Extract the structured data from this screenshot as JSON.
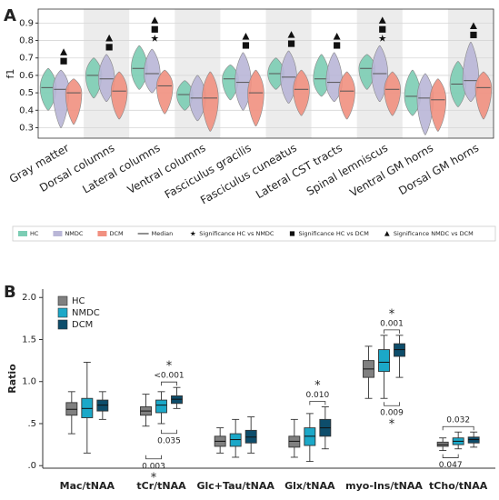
{
  "chart_data": [
    {
      "type": "violin",
      "panel_label": "A",
      "ylabel": "f1",
      "categories": [
        "Gray matter",
        "Dorsal columns",
        "Lateral columns",
        "Ventral columns",
        "Fasciculus gracilis",
        "Fasciculus cuneatus",
        "Lateral CST tracts",
        "Spinal lemniscus",
        "Ventral GM horns",
        "Dorsal GM horns"
      ],
      "series": [
        {
          "name": "HC",
          "color": "#7ccdb4",
          "median": [
            0.53,
            0.6,
            0.64,
            0.49,
            0.58,
            0.61,
            0.58,
            0.64,
            0.48,
            0.55
          ],
          "min": [
            0.4,
            0.47,
            0.52,
            0.4,
            0.46,
            0.52,
            0.48,
            0.52,
            0.37,
            0.42
          ],
          "max": [
            0.64,
            0.7,
            0.77,
            0.57,
            0.66,
            0.7,
            0.72,
            0.72,
            0.63,
            0.68
          ]
        },
        {
          "name": "NMDC",
          "color": "#b9b6d7",
          "median": [
            0.52,
            0.58,
            0.61,
            0.47,
            0.56,
            0.59,
            0.56,
            0.61,
            0.47,
            0.57
          ],
          "min": [
            0.3,
            0.45,
            0.5,
            0.34,
            0.4,
            0.44,
            0.45,
            0.45,
            0.26,
            0.45
          ],
          "max": [
            0.63,
            0.72,
            0.75,
            0.6,
            0.73,
            0.74,
            0.73,
            0.77,
            0.61,
            0.79
          ]
        },
        {
          "name": "DCM",
          "color": "#f19080",
          "median": [
            0.5,
            0.51,
            0.54,
            0.47,
            0.5,
            0.52,
            0.51,
            0.52,
            0.46,
            0.53
          ],
          "min": [
            0.32,
            0.35,
            0.38,
            0.28,
            0.31,
            0.37,
            0.35,
            0.37,
            0.28,
            0.35
          ],
          "max": [
            0.58,
            0.62,
            0.63,
            0.62,
            0.63,
            0.63,
            0.62,
            0.62,
            0.58,
            0.62
          ]
        }
      ],
      "median_label": "Median",
      "significance": {
        "names": [
          "Significance HC vs NMDC",
          "Significance HC vs DCM",
          "Significance NMDC vs DCM"
        ],
        "symbols": [
          "star",
          "square",
          "triangle"
        ],
        "per_category": [
          [
            1,
            2
          ],
          [
            1,
            2
          ],
          [
            0,
            1,
            2
          ],
          [],
          [
            1,
            2
          ],
          [
            1,
            2
          ],
          [
            1,
            2
          ],
          [
            0,
            1,
            2
          ],
          [],
          [
            1,
            2
          ]
        ]
      },
      "ylim": [
        0.24,
        0.98
      ],
      "yticks": [
        0.3,
        0.4,
        0.5,
        0.6,
        0.7,
        0.8,
        0.9
      ],
      "grid": true,
      "legend": "bottom"
    },
    {
      "type": "box",
      "panel_label": "B",
      "ylabel": "Ratio",
      "categories": [
        "Mac/tNAA",
        "tCr/tNAA",
        "Glc+Tau/tNAA",
        "Glx/tNAA",
        "myo-Ins/tNAA",
        "tCho/tNAA"
      ],
      "series": [
        {
          "name": "HC",
          "color": "#808080",
          "min": [
            0.38,
            0.47,
            0.15,
            0.1,
            0.8,
            0.18
          ],
          "q1": [
            0.6,
            0.6,
            0.23,
            0.22,
            1.05,
            0.23
          ],
          "median": [
            0.67,
            0.65,
            0.29,
            0.29,
            1.15,
            0.25
          ],
          "q3": [
            0.75,
            0.7,
            0.35,
            0.35,
            1.25,
            0.28
          ],
          "max": [
            0.88,
            0.85,
            0.45,
            0.55,
            1.42,
            0.33
          ]
        },
        {
          "name": "NMDC",
          "color": "#1ba8c8",
          "min": [
            0.15,
            0.5,
            0.1,
            0.05,
            0.8,
            0.2
          ],
          "q1": [
            0.57,
            0.63,
            0.23,
            0.24,
            1.12,
            0.25
          ],
          "median": [
            0.68,
            0.72,
            0.31,
            0.35,
            1.23,
            0.29
          ],
          "q3": [
            0.8,
            0.78,
            0.38,
            0.45,
            1.38,
            0.33
          ],
          "max": [
            1.23,
            0.88,
            0.55,
            0.62,
            1.55,
            0.4
          ]
        },
        {
          "name": "DCM",
          "color": "#0d4d6b",
          "min": [
            0.55,
            0.68,
            0.15,
            0.2,
            1.05,
            0.22
          ],
          "q1": [
            0.65,
            0.74,
            0.27,
            0.35,
            1.3,
            0.27
          ],
          "median": [
            0.72,
            0.79,
            0.34,
            0.45,
            1.38,
            0.31
          ],
          "q3": [
            0.78,
            0.83,
            0.42,
            0.55,
            1.45,
            0.34
          ],
          "max": [
            0.88,
            0.93,
            0.58,
            0.7,
            1.55,
            0.4
          ]
        }
      ],
      "annotations": [
        {
          "category": 1,
          "pair": [
            1,
            2
          ],
          "label": "<0.001",
          "side": "above",
          "mark": "*"
        },
        {
          "category": 1,
          "pair": [
            1,
            2
          ],
          "label": "0.035",
          "side": "below"
        },
        {
          "category": 1,
          "pair": [
            0,
            1
          ],
          "label": "0.003",
          "side": "below",
          "mark": "*"
        },
        {
          "category": 3,
          "pair": [
            1,
            2
          ],
          "label": "0.010",
          "side": "above",
          "mark": "*"
        },
        {
          "category": 4,
          "pair": [
            1,
            2
          ],
          "label": "0.001",
          "side": "above",
          "mark": "*"
        },
        {
          "category": 4,
          "pair": [
            1,
            2
          ],
          "label": "0.009",
          "side": "below",
          "mark": "*"
        },
        {
          "category": 5,
          "pair": [
            0,
            2
          ],
          "label": "0.032",
          "side": "above"
        },
        {
          "category": 5,
          "pair": [
            0,
            1
          ],
          "label": "0.047",
          "side": "below"
        }
      ],
      "ylim": [
        -0.03,
        2.1
      ],
      "yticks": [
        {
          "value": 0,
          "label": ".0"
        },
        {
          "value": 0.5,
          "label": ".5"
        },
        {
          "value": 1.0,
          "label": "1.0"
        },
        {
          "value": 1.5,
          "label": "1.5"
        },
        {
          "value": 2.0,
          "label": "2.0"
        }
      ],
      "grid": false,
      "legend": "upper left"
    }
  ]
}
